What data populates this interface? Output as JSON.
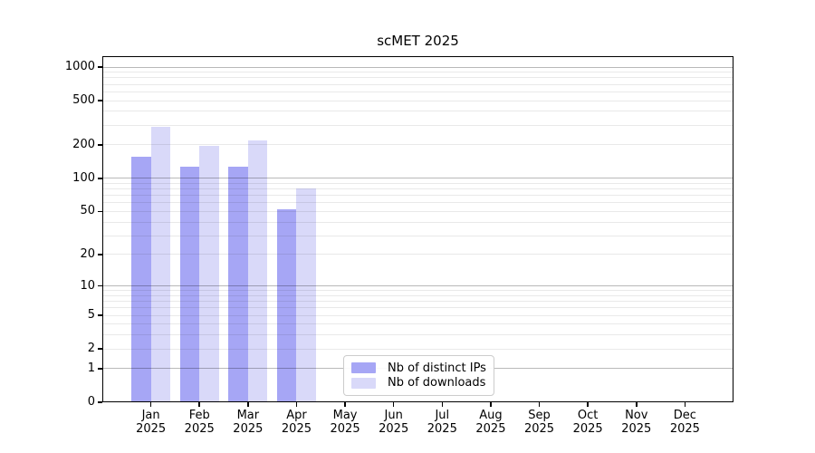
{
  "title": "scMET 2025",
  "chart_data": {
    "type": "bar",
    "title": "scMET 2025",
    "year": "2025",
    "categories": [
      "Jan",
      "Feb",
      "Mar",
      "Apr",
      "May",
      "Jun",
      "Jul",
      "Aug",
      "Sep",
      "Oct",
      "Nov",
      "Dec"
    ],
    "x_tick_labels": [
      "Jan 2025",
      "Feb 2025",
      "Mar 2025",
      "Apr 2025",
      "May 2025",
      "Jun 2025",
      "Jul 2025",
      "Aug 2025",
      "Sep 2025",
      "Oct 2025",
      "Nov 2025",
      "Dec 2025"
    ],
    "series": [
      {
        "name": "Nb of distinct IPs",
        "color": "#a6a6f5",
        "values": [
          158,
          128,
          128,
          52,
          null,
          null,
          null,
          null,
          null,
          null,
          null,
          null
        ]
      },
      {
        "name": "Nb of downloads",
        "color": "#d9d9f9",
        "values": [
          292,
          195,
          220,
          81,
          null,
          null,
          null,
          null,
          null,
          null,
          null,
          null
        ]
      }
    ],
    "yscale": "log1p",
    "ylim": [
      0,
      1000
    ],
    "yticks": [
      0,
      1,
      2,
      5,
      10,
      20,
      50,
      100,
      200,
      500,
      1000
    ],
    "grid": true,
    "legend_position": "lower center",
    "colors": {
      "grid_major": "#b9b9b9",
      "grid_minor": "#e9e9e9",
      "axis": "#000000",
      "background": "#ffffff"
    }
  }
}
